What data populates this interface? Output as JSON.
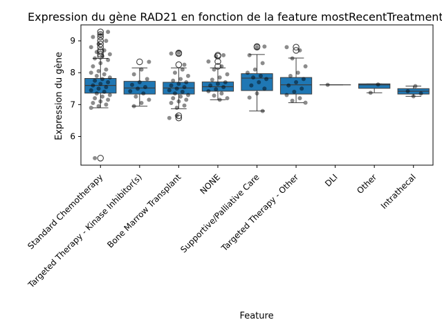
{
  "chart_data": {
    "type": "box",
    "title": "Expression du gène RAD21 en fonction de la feature mostRecentTreatmentType",
    "xlabel": "Feature",
    "ylabel": "Expression du gène",
    "ylim": [
      5.1,
      9.5
    ],
    "yticks": [
      6,
      7,
      8,
      9
    ],
    "grid": false,
    "legend": "none",
    "colors": {
      "box": "#1f77b4",
      "edge": "#3d3d3d",
      "point": "#000000",
      "spine": "#000000"
    },
    "categories": [
      "Standard Chemotherapy",
      "Targeted Therapy - Kinase Inhibitor(s)",
      "Bone Marrow Transplant",
      "NONE",
      "Supportive/Palliative Care",
      "Targeted Therapy - Other",
      "DLI",
      "Other",
      "Intrathecal"
    ],
    "boxes": [
      {
        "q1": 7.36,
        "median": 7.6,
        "q3": 7.82,
        "whisker_low": 6.9,
        "whisker_high": 8.45,
        "outliers": [
          8.52,
          8.58,
          8.65,
          8.7,
          8.8,
          8.9,
          9.0,
          9.12,
          9.2,
          9.28,
          5.32
        ],
        "points": [
          6.9,
          6.95,
          7.0,
          7.05,
          7.1,
          7.15,
          7.2,
          7.25,
          7.3,
          7.35,
          7.4,
          7.45,
          7.5,
          7.55,
          7.6,
          7.65,
          7.7,
          7.75,
          7.8,
          7.85,
          7.9,
          7.95,
          8.0,
          8.05,
          8.1,
          8.2,
          8.3,
          8.4,
          8.45
        ]
      },
      {
        "q1": 7.33,
        "median": 7.52,
        "q3": 7.73,
        "whisker_low": 6.95,
        "whisker_high": 8.15,
        "outliers": [
          8.34
        ],
        "points": [
          6.95,
          7.05,
          7.15,
          7.25,
          7.35,
          7.42,
          7.5,
          7.55,
          7.62,
          7.7,
          7.8,
          7.95,
          8.1
        ]
      },
      {
        "q1": 7.33,
        "median": 7.52,
        "q3": 7.7,
        "whisker_low": 6.87,
        "whisker_high": 8.15,
        "outliers": [
          6.58,
          6.65,
          8.25,
          8.6,
          8.62
        ],
        "points": [
          6.9,
          6.97,
          7.05,
          7.1,
          7.15,
          7.2,
          7.25,
          7.3,
          7.35,
          7.4,
          7.45,
          7.5,
          7.55,
          7.6,
          7.65,
          7.7,
          7.75,
          7.8,
          7.9,
          8.0,
          8.1
        ]
      },
      {
        "q1": 7.42,
        "median": 7.56,
        "q3": 7.71,
        "whisker_low": 7.15,
        "whisker_high": 8.15,
        "outliers": [
          8.2,
          8.35,
          8.52,
          8.55
        ],
        "points": [
          7.15,
          7.2,
          7.28,
          7.35,
          7.42,
          7.48,
          7.55,
          7.6,
          7.65,
          7.7,
          7.78,
          7.85,
          7.95,
          8.1
        ]
      },
      {
        "q1": 7.44,
        "median": 7.83,
        "q3": 7.97,
        "whisker_low": 6.8,
        "whisker_high": 8.57,
        "outliers": [
          8.8,
          8.82
        ],
        "points": [
          6.8,
          7.22,
          7.35,
          7.5,
          7.6,
          7.7,
          7.8,
          7.85,
          7.9,
          8.0,
          8.1,
          8.3,
          8.55
        ]
      },
      {
        "q1": 7.33,
        "median": 7.62,
        "q3": 7.85,
        "whisker_low": 7.06,
        "whisker_high": 8.46,
        "outliers": [
          8.7,
          8.8
        ],
        "points": [
          7.06,
          7.12,
          7.2,
          7.3,
          7.4,
          7.5,
          7.6,
          7.7,
          7.8,
          7.9,
          8.0,
          8.2,
          8.45
        ]
      },
      {
        "q1": 7.62,
        "median": 7.62,
        "q3": 7.62,
        "whisker_low": 7.62,
        "whisker_high": 7.62,
        "outliers": [],
        "points": [
          7.62
        ]
      },
      {
        "q1": 7.51,
        "median": 7.62,
        "q3": 7.65,
        "whisker_low": 7.37,
        "whisker_high": 7.65,
        "outliers": [],
        "points": [
          7.37,
          7.63
        ]
      },
      {
        "q1": 7.33,
        "median": 7.42,
        "q3": 7.5,
        "whisker_low": 7.26,
        "whisker_high": 7.58,
        "outliers": [],
        "points": [
          7.26,
          7.35,
          7.42,
          7.58
        ]
      }
    ]
  }
}
